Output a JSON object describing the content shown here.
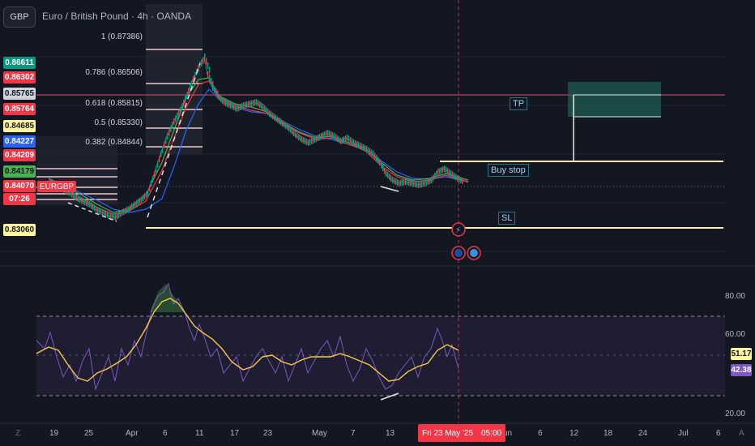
{
  "header": {
    "symbol_badge": "GBP",
    "title": "Euro / British Pound · 4h · OANDA"
  },
  "price_scale_tags": [
    {
      "value": "0.86611",
      "bg": "#089981",
      "fg": "#ffffff"
    },
    {
      "value": "0.86302",
      "bg": "#f23645",
      "fg": "#ffffff"
    },
    {
      "value": "0.85765",
      "bg": "#d1d4dc",
      "fg": "#131722"
    },
    {
      "value": "0.85764",
      "bg": "#f23645",
      "fg": "#ffffff"
    },
    {
      "value": "0.84685",
      "bg": "#fff59d",
      "fg": "#131722"
    },
    {
      "value": "0.84227",
      "bg": "#2962ff",
      "fg": "#ffffff"
    },
    {
      "value": "0.84209",
      "bg": "#f23645",
      "fg": "#ffffff"
    },
    {
      "value": "0.84179",
      "bg": "#4caf50",
      "fg": "#131722"
    },
    {
      "value": "0.84070",
      "bg": "#f23645",
      "fg": "#ffffff"
    },
    {
      "value": "07:26",
      "bg": "#f23645",
      "fg": "#ffffff"
    },
    {
      "value": "0.83060",
      "bg": "#fff59d",
      "fg": "#131722"
    }
  ],
  "symbol_label": "EURGBP",
  "fib_levels": [
    {
      "label": "1 (0.87386)"
    },
    {
      "label": "0.786 (0.86506)"
    },
    {
      "label": "0.618 (0.85815)"
    },
    {
      "label": "0.5 (0.85330)"
    },
    {
      "label": "0.382 (0.84844)"
    }
  ],
  "drawings": {
    "tp": "TP",
    "buy_stop": "Buy stop",
    "sl": "SL"
  },
  "time_axis": {
    "labels": [
      "19",
      "25",
      "Apr",
      "6",
      "11",
      "17",
      "23",
      "May",
      "7",
      "13",
      "Jun",
      "6",
      "12",
      "18",
      "24",
      "Jul",
      "6"
    ],
    "crosshair_label": "Fri 23 May '25",
    "crosshair_time": "05:00"
  },
  "rsi": {
    "axis_labels": [
      "80.00",
      "60.00",
      "20.00"
    ],
    "value_rsi": "42.38",
    "value_ma": "51.17",
    "rsi_color": "#7e57c2",
    "ma_color": "#f7c948"
  },
  "colors": {
    "background": "#131722",
    "up": "#089981",
    "down": "#f23645"
  }
}
